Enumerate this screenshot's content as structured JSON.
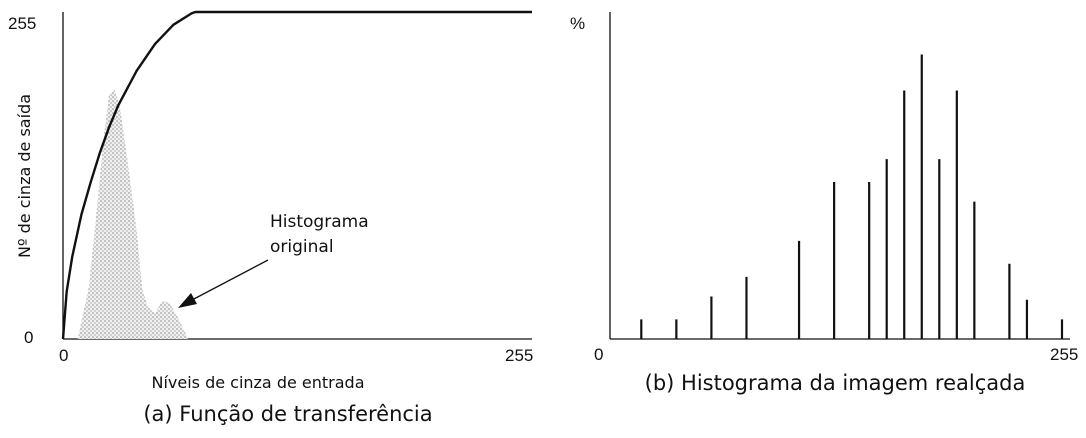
{
  "chart_data": [
    {
      "type": "line",
      "caption": "(a) Função de transferência",
      "xlabel": "Níveis de cinza de entrada",
      "ylabel": "Nº de cinza de saída",
      "xlim": [
        0,
        255
      ],
      "ylim": [
        0,
        255
      ],
      "x_ticks": [
        "0",
        "255"
      ],
      "y_ticks": [
        "0",
        "255"
      ],
      "grid": false,
      "annotation": {
        "lines": [
          "Histograma",
          "original"
        ]
      },
      "series": [
        {
          "kind": "transfer-curve",
          "x": [
            0,
            2,
            5,
            10,
            15,
            20,
            25,
            30,
            40,
            50,
            60,
            70,
            72,
            100,
            150,
            200,
            255
          ],
          "y": [
            0,
            37,
            64,
            97,
            122,
            145,
            165,
            182,
            209,
            230,
            245,
            254,
            255,
            255,
            255,
            255,
            255
          ]
        },
        {
          "kind": "histogram-area",
          "x": [
            8,
            14,
            18,
            22,
            25,
            28,
            31,
            35,
            40,
            43,
            46,
            50,
            54,
            58,
            62,
            66,
            68
          ],
          "y": [
            0,
            40,
            95,
            155,
            190,
            195,
            180,
            140,
            85,
            40,
            25,
            20,
            30,
            28,
            18,
            6,
            0
          ]
        }
      ]
    },
    {
      "type": "bar",
      "caption": "(b) Histograma da imagem realçada",
      "ylabel": "%",
      "xlim": [
        0,
        255
      ],
      "x_ticks": [
        "0",
        "255"
      ],
      "grid": false,
      "x": [
        15,
        35,
        55,
        75,
        105,
        125,
        145,
        155,
        165,
        175,
        185,
        195,
        205,
        225,
        235,
        255
      ],
      "values": [
        6,
        6,
        13,
        19,
        30,
        48,
        48,
        55,
        76,
        87,
        55,
        76,
        42,
        23,
        12,
        6
      ],
      "ylim": [
        0,
        100
      ]
    }
  ]
}
